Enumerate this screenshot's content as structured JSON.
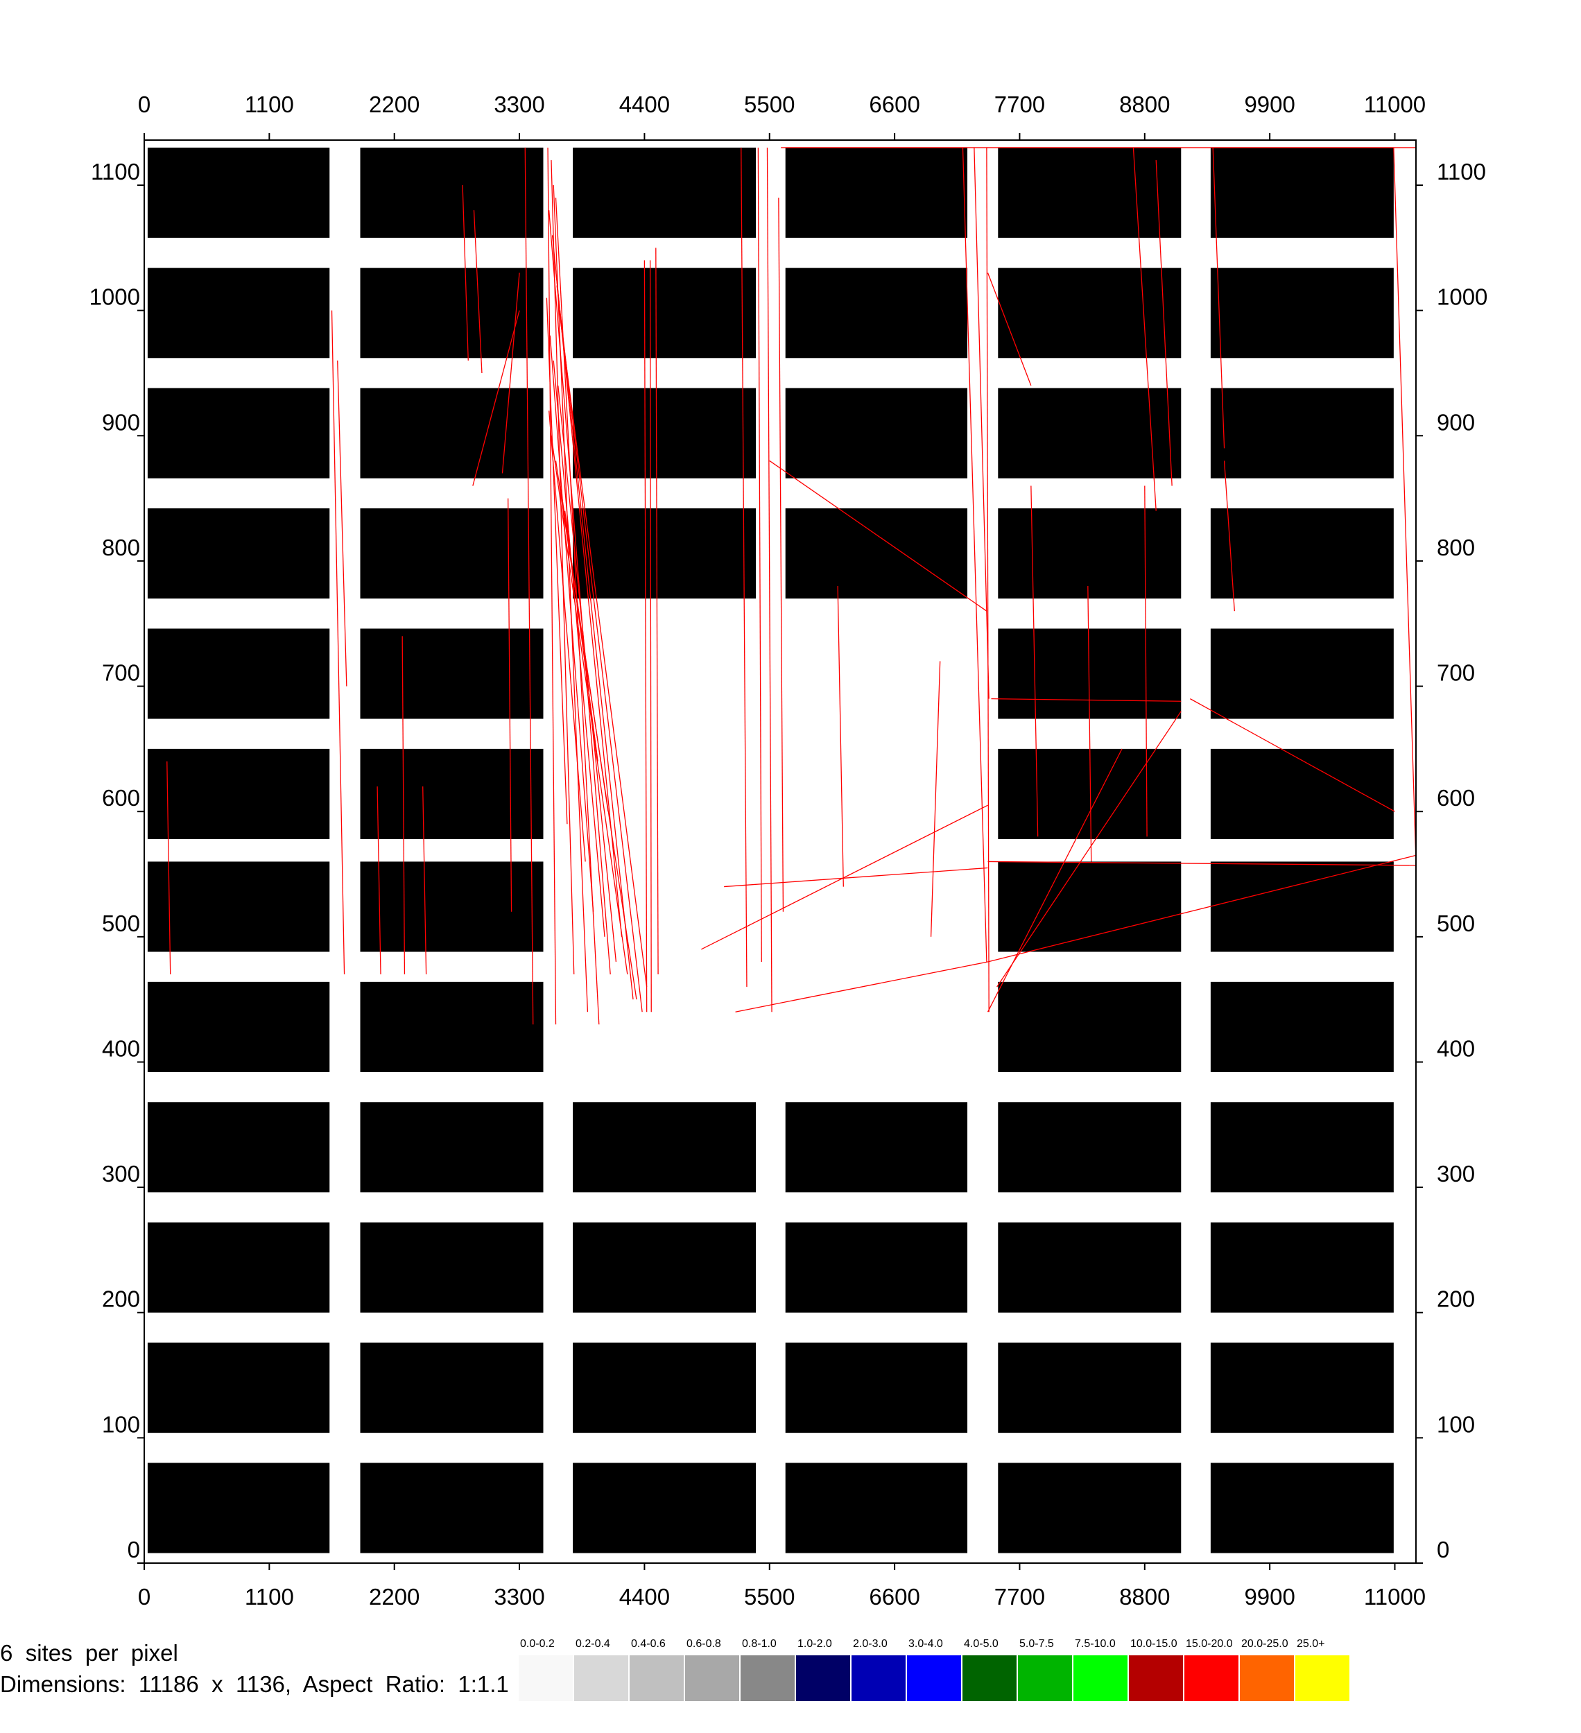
{
  "chart_data": {
    "type": "heatmap",
    "title": "",
    "xlabel": "",
    "ylabel": "",
    "xlim": [
      0,
      11186
    ],
    "ylim": [
      0,
      1136
    ],
    "x_ticks": [
      "0",
      "1100",
      "2200",
      "3300",
      "4400",
      "5500",
      "6600",
      "7700",
      "8800",
      "9900",
      "11000"
    ],
    "x_tick_values": [
      0,
      1100,
      2200,
      3300,
      4400,
      5500,
      6600,
      7700,
      8800,
      9900,
      11000
    ],
    "y_ticks": [
      "0",
      "100",
      "200",
      "300",
      "400",
      "500",
      "600",
      "700",
      "800",
      "900",
      "1000",
      "1100"
    ],
    "y_tick_values": [
      0,
      100,
      200,
      300,
      400,
      500,
      600,
      700,
      800,
      900,
      1000,
      1100
    ],
    "block_columns": [
      {
        "x0": 30,
        "x1": 1630
      },
      {
        "x0": 1900,
        "x1": 3510
      },
      {
        "x0": 3770,
        "x1": 5380
      },
      {
        "x0": 5640,
        "x1": 7240
      },
      {
        "x0": 7510,
        "x1": 9120
      },
      {
        "x0": 9380,
        "x1": 10990
      }
    ],
    "block_rows": [
      {
        "y0": 8,
        "y1": 80
      },
      {
        "y0": 104,
        "y1": 176
      },
      {
        "y0": 200,
        "y1": 272
      },
      {
        "y0": 296,
        "y1": 368
      },
      {
        "y0": 392,
        "y1": 464
      },
      {
        "y0": 488,
        "y1": 560
      },
      {
        "y0": 578,
        "y1": 650
      },
      {
        "y0": 674,
        "y1": 746
      },
      {
        "y0": 770,
        "y1": 842
      },
      {
        "y0": 866,
        "y1": 938
      },
      {
        "y0": 962,
        "y1": 1034
      },
      {
        "y0": 1058,
        "y1": 1130
      }
    ],
    "missing_blocks": [
      {
        "col": 2,
        "row": 4
      },
      {
        "col": 3,
        "row": 4
      },
      {
        "col": 2,
        "row": 5
      },
      {
        "col": 3,
        "row": 5
      },
      {
        "col": 2,
        "row": 6
      },
      {
        "col": 3,
        "row": 6
      },
      {
        "col": 2,
        "row": 7
      },
      {
        "col": 3,
        "row": 7
      }
    ],
    "trace_color": "#ff0000",
    "traces": [
      [
        [
          3550,
          1130
        ],
        [
          3620,
          430
        ]
      ],
      [
        [
          3580,
          1120
        ],
        [
          3780,
          470
        ]
      ],
      [
        [
          3600,
          1100
        ],
        [
          3900,
          440
        ]
      ],
      [
        [
          3620,
          1090
        ],
        [
          4000,
          430
        ]
      ],
      [
        [
          3560,
          1080
        ],
        [
          4100,
          470
        ]
      ],
      [
        [
          3590,
          1060
        ],
        [
          4200,
          500
        ]
      ],
      [
        [
          3610,
          1040
        ],
        [
          4300,
          450
        ]
      ],
      [
        [
          3630,
          1020
        ],
        [
          4380,
          440
        ]
      ],
      [
        [
          3650,
          1000
        ],
        [
          4420,
          460
        ]
      ],
      [
        [
          3570,
          980
        ],
        [
          3950,
          520
        ]
      ],
      [
        [
          3600,
          960
        ],
        [
          4050,
          500
        ]
      ],
      [
        [
          3640,
          940
        ],
        [
          4150,
          480
        ]
      ],
      [
        [
          3560,
          920
        ],
        [
          3880,
          560
        ]
      ],
      [
        [
          3580,
          900
        ],
        [
          4250,
          470
        ]
      ],
      [
        [
          3620,
          880
        ],
        [
          4330,
          450
        ]
      ],
      [
        [
          3660,
          860
        ],
        [
          4080,
          600
        ]
      ],
      [
        [
          3700,
          840
        ],
        [
          3990,
          640
        ]
      ],
      [
        [
          3540,
          1010
        ],
        [
          3720,
          590
        ]
      ],
      [
        [
          4400,
          1040
        ],
        [
          4420,
          440
        ]
      ],
      [
        [
          4450,
          1040
        ],
        [
          4460,
          440
        ]
      ],
      [
        [
          4500,
          1050
        ],
        [
          4520,
          470
        ]
      ],
      [
        [
          3350,
          1130
        ],
        [
          3420,
          430
        ]
      ],
      [
        [
          5250,
          1130
        ],
        [
          5300,
          460
        ]
      ],
      [
        [
          5400,
          1130
        ],
        [
          5430,
          480
        ]
      ],
      [
        [
          5480,
          1130
        ],
        [
          5520,
          440
        ]
      ],
      [
        [
          5580,
          1090
        ],
        [
          5620,
          520
        ]
      ],
      [
        [
          7200,
          1130
        ],
        [
          7410,
          480
        ]
      ],
      [
        [
          7300,
          1130
        ],
        [
          7430,
          690
        ]
      ],
      [
        [
          7410,
          1130
        ],
        [
          7430,
          440
        ]
      ],
      [
        [
          7420,
          1030
        ],
        [
          7800,
          940
        ]
      ],
      [
        [
          5500,
          880
        ],
        [
          7410,
          760
        ]
      ],
      [
        [
          5100,
          540
        ],
        [
          7420,
          555
        ]
      ],
      [
        [
          5200,
          440
        ],
        [
          7420,
          480
        ]
      ],
      [
        [
          4900,
          490
        ],
        [
          7420,
          605
        ]
      ],
      [
        [
          7420,
          560
        ],
        [
          11186,
          557
        ]
      ],
      [
        [
          7420,
          480
        ],
        [
          11186,
          565
        ]
      ],
      [
        [
          7420,
          440
        ],
        [
          8600,
          650
        ]
      ],
      [
        [
          7500,
          460
        ],
        [
          9120,
          680
        ]
      ],
      [
        [
          7450,
          690
        ],
        [
          9120,
          688
        ]
      ],
      [
        [
          9200,
          690
        ],
        [
          11000,
          600
        ]
      ],
      [
        [
          1650,
          1000
        ],
        [
          1760,
          470
        ]
      ],
      [
        [
          1700,
          960
        ],
        [
          1780,
          700
        ]
      ],
      [
        [
          2800,
          1100
        ],
        [
          2850,
          960
        ]
      ],
      [
        [
          2900,
          1080
        ],
        [
          2970,
          950
        ]
      ],
      [
        [
          3300,
          1030
        ],
        [
          3150,
          870
        ]
      ],
      [
        [
          3300,
          1000
        ],
        [
          2890,
          860
        ]
      ],
      [
        [
          3200,
          850
        ],
        [
          3230,
          520
        ]
      ],
      [
        [
          2270,
          740
        ],
        [
          2290,
          470
        ]
      ],
      [
        [
          2050,
          620
        ],
        [
          2080,
          470
        ]
      ],
      [
        [
          2450,
          620
        ],
        [
          2480,
          470
        ]
      ],
      [
        [
          200,
          640
        ],
        [
          230,
          470
        ]
      ],
      [
        [
          8700,
          1130
        ],
        [
          8900,
          840
        ]
      ],
      [
        [
          8900,
          1120
        ],
        [
          9040,
          860
        ]
      ],
      [
        [
          7800,
          860
        ],
        [
          7860,
          580
        ]
      ],
      [
        [
          8300,
          780
        ],
        [
          8330,
          560
        ]
      ],
      [
        [
          8800,
          860
        ],
        [
          8820,
          580
        ]
      ],
      [
        [
          9400,
          1130
        ],
        [
          9500,
          890
        ]
      ],
      [
        [
          9500,
          880
        ],
        [
          9590,
          760
        ]
      ],
      [
        [
          6100,
          780
        ],
        [
          6150,
          540
        ]
      ],
      [
        [
          7000,
          720
        ],
        [
          6920,
          500
        ]
      ],
      [
        [
          5600,
          1130
        ],
        [
          11186,
          1130
        ]
      ],
      [
        [
          10990,
          1130
        ],
        [
          11186,
          560
        ]
      ]
    ],
    "legend_entries": [
      {
        "label": "0.0-0.2",
        "color": "#f8f8f8"
      },
      {
        "label": "0.2-0.4",
        "color": "#d8d8d8"
      },
      {
        "label": "0.4-0.6",
        "color": "#c0c0c0"
      },
      {
        "label": "0.6-0.8",
        "color": "#a8a8a8"
      },
      {
        "label": "0.8-1.0",
        "color": "#888888"
      },
      {
        "label": "1.0-2.0",
        "color": "#000066"
      },
      {
        "label": "2.0-3.0",
        "color": "#0000b4"
      },
      {
        "label": "3.0-4.0",
        "color": "#0000ff"
      },
      {
        "label": "4.0-5.0",
        "color": "#006400"
      },
      {
        "label": "5.0-7.5",
        "color": "#00b400"
      },
      {
        "label": "7.5-10.0",
        "color": "#00ff00"
      },
      {
        "label": "10.0-15.0",
        "color": "#b40000"
      },
      {
        "label": "15.0-20.0",
        "color": "#ff0000"
      },
      {
        "label": "20.0-25.0",
        "color": "#ff6400"
      },
      {
        "label": "25.0+",
        "color": "#ffff00"
      }
    ]
  },
  "footer": {
    "line1": "6  sites  per  pixel",
    "line2": "Dimensions:  11186  x  1136,  Aspect  Ratio:  1:1.1"
  }
}
